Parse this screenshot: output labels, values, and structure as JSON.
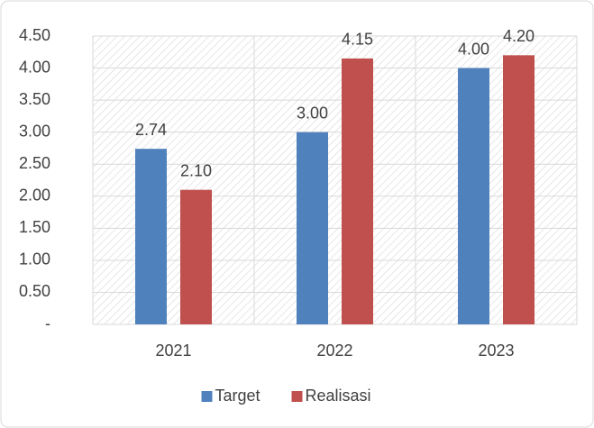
{
  "chart_data": {
    "type": "bar",
    "categories": [
      "2021",
      "2022",
      "2023"
    ],
    "series": [
      {
        "name": "Target",
        "color": "#4f81bd",
        "values": [
          2.74,
          3.0,
          4.0
        ],
        "value_labels": [
          "2.74",
          "3.00",
          "4.00"
        ]
      },
      {
        "name": "Realisasi",
        "color": "#c0504d",
        "values": [
          2.1,
          4.15,
          4.2
        ],
        "value_labels": [
          "2.10",
          "4.15",
          "4.20"
        ]
      }
    ],
    "ylim": [
      0,
      4.5
    ],
    "yticks": [
      {
        "value": 0,
        "label": "-"
      },
      {
        "value": 0.5,
        "label": "0.50"
      },
      {
        "value": 1,
        "label": "1.00"
      },
      {
        "value": 1.5,
        "label": "1.50"
      },
      {
        "value": 2,
        "label": "2.00"
      },
      {
        "value": 2.5,
        "label": "2.50"
      },
      {
        "value": 3,
        "label": "3.00"
      },
      {
        "value": 3.5,
        "label": "3.50"
      },
      {
        "value": 4,
        "label": "4.00"
      },
      {
        "value": 4.5,
        "label": "4.50"
      }
    ],
    "grid": true,
    "legend": "bottom"
  }
}
